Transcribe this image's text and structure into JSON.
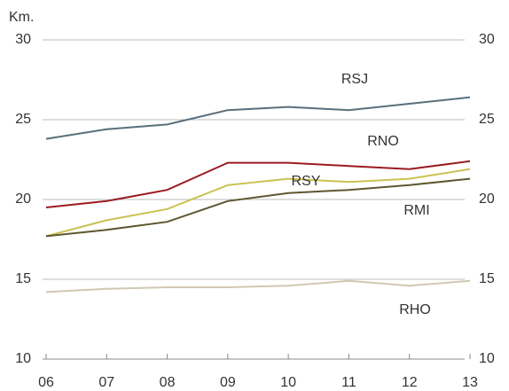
{
  "chart_data": {
    "type": "line",
    "y_label": "Km.",
    "categories": [
      "06",
      "07",
      "08",
      "09",
      "10",
      "11",
      "12",
      "13"
    ],
    "series": [
      {
        "name": "RSJ",
        "color": "#5a6f7d",
        "values": [
          23.8,
          24.4,
          24.7,
          25.6,
          25.8,
          25.6,
          26.0,
          26.4
        ]
      },
      {
        "name": "RNO",
        "color": "#9b1b22",
        "values": [
          19.5,
          19.9,
          20.6,
          22.3,
          22.3,
          22.1,
          21.9,
          22.4
        ]
      },
      {
        "name": "RSY",
        "color": "#c9c152",
        "values": [
          17.7,
          18.7,
          19.4,
          20.9,
          21.3,
          21.1,
          21.3,
          21.9
        ]
      },
      {
        "name": "RMI",
        "color": "#5e5730",
        "values": [
          17.7,
          18.1,
          18.6,
          19.9,
          20.4,
          20.6,
          20.9,
          21.3
        ]
      },
      {
        "name": "RHO",
        "color": "#d0c8b3",
        "values": [
          14.2,
          14.4,
          14.5,
          14.5,
          14.6,
          14.9,
          14.6,
          14.9
        ]
      }
    ],
    "ylim": [
      10,
      30
    ],
    "yticks": [
      10,
      15,
      20,
      25,
      30
    ],
    "y2lim": [
      10,
      30
    ],
    "y2ticks": [
      10,
      15,
      20,
      25,
      30
    ],
    "grid": true
  }
}
